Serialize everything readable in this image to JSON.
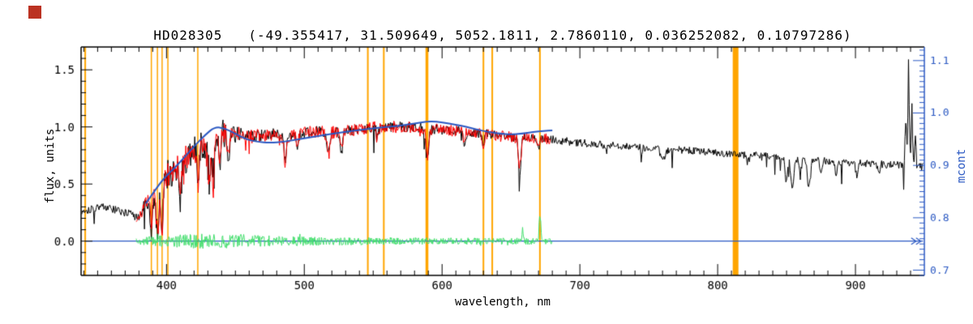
{
  "page": {
    "background": "#ffffff",
    "corner_mark_color": "#bb3222"
  },
  "chart_data": {
    "type": "line",
    "title": "HD028305   (-49.355417, 31.509649, 5052.1811, 2.7860110, 0.036252082, 0.10797286)",
    "xlabel": "wavelength, nm",
    "ylabel_left": "flux, units",
    "ylabel_right": "mcont",
    "x_range": [
      338,
      950
    ],
    "y_left_range": [
      -0.3,
      1.7
    ],
    "y_right_range": [
      0.69,
      1.126
    ],
    "x_ticks": [
      400,
      500,
      600,
      700,
      800,
      900
    ],
    "x_minor_step": 10,
    "y_left_ticks": [
      0.0,
      0.5,
      1.0,
      1.5
    ],
    "y_left_minor_step": 0.1,
    "y_right_ticks": [
      0.7,
      0.8,
      0.9,
      1.0,
      1.1
    ],
    "y_right_minor_step": 0.01,
    "grid": false,
    "legend": "none",
    "colors": {
      "frame": "#000000",
      "marker": "#ffa500",
      "observed": "#000000",
      "fit": "#ff0000",
      "residual": "#44df6e",
      "continuum": "#2b59c3",
      "right_axis": "#2b59c3",
      "zero_line": "#2b59c3"
    },
    "marker_lines": [
      {
        "nm": 341.0,
        "w": 2
      },
      {
        "nm": 389.0,
        "w": 1.5
      },
      {
        "nm": 393.4,
        "w": 1.5
      },
      {
        "nm": 396.8,
        "w": 1.5
      },
      {
        "nm": 401.0,
        "w": 1.5
      },
      {
        "nm": 422.7,
        "w": 1.5
      },
      {
        "nm": 546.1,
        "w": 2
      },
      {
        "nm": 557.7,
        "w": 2
      },
      {
        "nm": 589.0,
        "w": 3.5
      },
      {
        "nm": 630.0,
        "w": 2
      },
      {
        "nm": 636.4,
        "w": 2
      },
      {
        "nm": 671.0,
        "w": 2
      },
      {
        "nm": 813.0,
        "w": 7
      }
    ],
    "absorption_dips": [
      {
        "nm": 389.0,
        "d": 0.3,
        "w": 1.2
      },
      {
        "nm": 393.4,
        "d": 0.42,
        "w": 1.4
      },
      {
        "nm": 396.8,
        "d": 0.4,
        "w": 1.4
      },
      {
        "nm": 410.2,
        "d": 0.28,
        "w": 1.3
      },
      {
        "nm": 422.7,
        "d": 0.3,
        "w": 1.3
      },
      {
        "nm": 430.8,
        "d": 0.35,
        "w": 1.6
      },
      {
        "nm": 434.0,
        "d": 0.38,
        "w": 1.4
      },
      {
        "nm": 438.3,
        "d": 0.25,
        "w": 1.3
      },
      {
        "nm": 445.0,
        "d": 0.18,
        "w": 1.2
      },
      {
        "nm": 486.1,
        "d": 0.22,
        "w": 1.3
      },
      {
        "nm": 495.0,
        "d": 0.12,
        "w": 1.0
      },
      {
        "nm": 517.3,
        "d": 0.18,
        "w": 1.5
      },
      {
        "nm": 527.0,
        "d": 0.15,
        "w": 1.2
      },
      {
        "nm": 553.0,
        "d": 0.1,
        "w": 1.0
      },
      {
        "nm": 589.2,
        "d": 0.26,
        "w": 1.3
      },
      {
        "nm": 616.2,
        "d": 0.1,
        "w": 1.0
      },
      {
        "nm": 630.0,
        "d": 0.12,
        "w": 1.0
      },
      {
        "nm": 656.3,
        "d": 0.28,
        "w": 1.2
      },
      {
        "nm": 670.0,
        "d": 0.1,
        "w": 1.0
      }
    ],
    "ir_dips": [
      {
        "nm": 719.0,
        "d": 0.06,
        "w": 1.5
      },
      {
        "nm": 760.5,
        "d": 0.1,
        "w": 2.0
      },
      {
        "nm": 822.0,
        "d": 0.06,
        "w": 1.5
      },
      {
        "nm": 849.8,
        "d": 0.18,
        "w": 1.2
      },
      {
        "nm": 854.2,
        "d": 0.33,
        "w": 1.3
      },
      {
        "nm": 860.0,
        "d": 0.12,
        "w": 1.0
      },
      {
        "nm": 866.2,
        "d": 0.3,
        "w": 1.3
      },
      {
        "nm": 875.0,
        "d": 0.1,
        "w": 1.0
      },
      {
        "nm": 886.0,
        "d": 0.12,
        "w": 1.0
      },
      {
        "nm": 901.0,
        "d": 0.12,
        "w": 1.0
      },
      {
        "nm": 917.0,
        "d": 0.08,
        "w": 1.0
      }
    ],
    "edge_spikes": [
      {
        "nm": 936.5,
        "h": 0.45,
        "w": 0.7
      },
      {
        "nm": 938.5,
        "h": 0.78,
        "w": 0.8
      },
      {
        "nm": 941.0,
        "h": 0.5,
        "w": 0.7
      },
      {
        "nm": 943.5,
        "h": 0.3,
        "w": 0.6
      }
    ],
    "series": {
      "observed": {
        "name": "observed spectrum",
        "color": "#000000",
        "range": [
          338.5,
          949
        ],
        "step": 0.5,
        "lw": 1,
        "envelope": [
          [
            338,
            0.26
          ],
          [
            344,
            0.28
          ],
          [
            350,
            0.3
          ],
          [
            356,
            0.3
          ],
          [
            362,
            0.27
          ],
          [
            368,
            0.26
          ],
          [
            374,
            0.23
          ],
          [
            379,
            0.21
          ],
          [
            383,
            0.28
          ],
          [
            387,
            0.37
          ],
          [
            391,
            0.45
          ],
          [
            395,
            0.5
          ],
          [
            400,
            0.57
          ],
          [
            405,
            0.63
          ],
          [
            410,
            0.68
          ],
          [
            415,
            0.74
          ],
          [
            420,
            0.8
          ],
          [
            425,
            0.85
          ],
          [
            430,
            0.89
          ],
          [
            436,
            0.95
          ],
          [
            440,
            0.96
          ],
          [
            446,
            0.92
          ],
          [
            452,
            0.94
          ],
          [
            458,
            0.91
          ],
          [
            464,
            0.92
          ],
          [
            470,
            0.93
          ],
          [
            478,
            0.94
          ],
          [
            486,
            0.91
          ],
          [
            494,
            0.93
          ],
          [
            502,
            0.95
          ],
          [
            510,
            0.96
          ],
          [
            518,
            0.95
          ],
          [
            526,
            0.96
          ],
          [
            534,
            0.97
          ],
          [
            542,
            0.98
          ],
          [
            550,
            1.0
          ],
          [
            558,
            0.99
          ],
          [
            566,
            1.0
          ],
          [
            574,
            1.0
          ],
          [
            582,
            1.0
          ],
          [
            590,
            0.98
          ],
          [
            598,
            0.98
          ],
          [
            606,
            0.97
          ],
          [
            614,
            0.96
          ],
          [
            622,
            0.95
          ],
          [
            630,
            0.94
          ],
          [
            638,
            0.93
          ],
          [
            646,
            0.92
          ],
          [
            654,
            0.9
          ],
          [
            662,
            0.91
          ],
          [
            670,
            0.9
          ],
          [
            678,
            0.89
          ],
          [
            686,
            0.88
          ],
          [
            694,
            0.87
          ],
          [
            702,
            0.86
          ],
          [
            712,
            0.85
          ],
          [
            722,
            0.84
          ],
          [
            732,
            0.83
          ],
          [
            742,
            0.82
          ],
          [
            752,
            0.81
          ],
          [
            762,
            0.8
          ],
          [
            772,
            0.8
          ],
          [
            782,
            0.79
          ],
          [
            792,
            0.78
          ],
          [
            802,
            0.77
          ],
          [
            812,
            0.76
          ],
          [
            822,
            0.755
          ],
          [
            832,
            0.75
          ],
          [
            842,
            0.74
          ],
          [
            852,
            0.72
          ],
          [
            862,
            0.71
          ],
          [
            872,
            0.71
          ],
          [
            882,
            0.7
          ],
          [
            892,
            0.69
          ],
          [
            902,
            0.685
          ],
          [
            912,
            0.68
          ],
          [
            922,
            0.67
          ],
          [
            932,
            0.665
          ],
          [
            940,
            0.66
          ],
          [
            949,
            0.65
          ]
        ],
        "amp": [
          [
            338,
            0.035
          ],
          [
            378,
            0.04
          ],
          [
            384,
            0.07
          ],
          [
            392,
            0.1
          ],
          [
            400,
            0.14
          ],
          [
            440,
            0.14
          ],
          [
            450,
            0.07
          ],
          [
            470,
            0.05
          ],
          [
            600,
            0.045
          ],
          [
            700,
            0.035
          ],
          [
            850,
            0.03
          ],
          [
            949,
            0.035
          ]
        ],
        "extra_dip_chance": 0.02,
        "extra_dip_depth": 0.22
      },
      "fit": {
        "name": "fitted spectrum",
        "color": "#ff0000",
        "range": [
          378,
          679
        ],
        "step": 0.5,
        "lw": 1,
        "amp": [
          [
            378,
            0.06
          ],
          [
            392,
            0.09
          ],
          [
            400,
            0.11
          ],
          [
            440,
            0.11
          ],
          [
            455,
            0.06
          ],
          [
            600,
            0.05
          ],
          [
            679,
            0.05
          ]
        ],
        "extra_dip_chance": 0.015,
        "extra_dip_depth": 0.16
      },
      "residual": {
        "name": "residual (obs - fit)",
        "color": "#44df6e",
        "range": [
          378,
          680
        ],
        "step": 0.4,
        "lw": 1,
        "envelope": [
          [
            378,
            0
          ],
          [
            680,
            0
          ]
        ],
        "amp": [
          [
            378,
            0.025
          ],
          [
            388,
            0.045
          ],
          [
            400,
            0.05
          ],
          [
            425,
            0.065
          ],
          [
            455,
            0.06
          ],
          [
            480,
            0.045
          ],
          [
            520,
            0.035
          ],
          [
            600,
            0.03
          ],
          [
            680,
            0.028
          ]
        ],
        "extra_dip_chance": 0.012,
        "extra_dip_depth": 0.07,
        "extra_symmetric": true,
        "spikes": [
          {
            "nm": 671.0,
            "h": 0.27,
            "w": 0.8
          },
          {
            "nm": 658.5,
            "h": 0.09,
            "w": 0.7
          }
        ]
      },
      "continuum": {
        "name": "mcont continuum fit",
        "color": "#2b59c3",
        "lw": 2,
        "points": [
          [
            385,
            0.33
          ],
          [
            392,
            0.45
          ],
          [
            398,
            0.55
          ],
          [
            405,
            0.63
          ],
          [
            412,
            0.72
          ],
          [
            420,
            0.83
          ],
          [
            428,
            0.93
          ],
          [
            435,
            1.0
          ],
          [
            442,
            0.99
          ],
          [
            450,
            0.94
          ],
          [
            458,
            0.89
          ],
          [
            466,
            0.87
          ],
          [
            475,
            0.86
          ],
          [
            485,
            0.87
          ],
          [
            495,
            0.89
          ],
          [
            505,
            0.91
          ],
          [
            515,
            0.93
          ],
          [
            525,
            0.95
          ],
          [
            535,
            0.965
          ],
          [
            545,
            0.98
          ],
          [
            555,
            0.995
          ],
          [
            565,
            1.005
          ],
          [
            575,
            1.02
          ],
          [
            585,
            1.04
          ],
          [
            592,
            1.05
          ],
          [
            600,
            1.04
          ],
          [
            610,
            1.02
          ],
          [
            618,
            1.0
          ],
          [
            626,
            0.975
          ],
          [
            634,
            0.955
          ],
          [
            642,
            0.94
          ],
          [
            650,
            0.935
          ],
          [
            658,
            0.94
          ],
          [
            666,
            0.955
          ],
          [
            674,
            0.965
          ],
          [
            680,
            0.97
          ]
        ]
      },
      "zero_line": {
        "name": "zero flux baseline",
        "color": "#2b59c3",
        "range": [
          341,
          949
        ],
        "value": 0.0,
        "lw": 1.3
      }
    }
  }
}
